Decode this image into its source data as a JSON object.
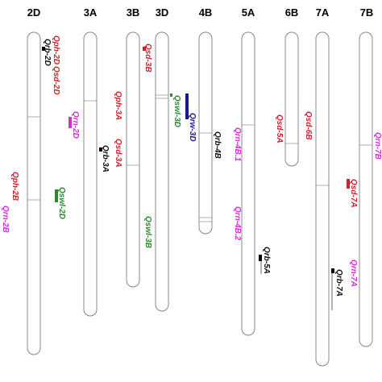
{
  "chromosomes": [
    {
      "label": "2D"
    },
    {
      "label": "3A"
    },
    {
      "label": "3B"
    },
    {
      "label": "3D"
    },
    {
      "label": "4B"
    },
    {
      "label": "5A"
    },
    {
      "label": "6B"
    },
    {
      "label": "7A"
    },
    {
      "label": "7B"
    }
  ],
  "qtls": [
    {
      "label": "Qrb-2D"
    },
    {
      "label": "Qph-2D"
    },
    {
      "label": "Qsd-2D"
    },
    {
      "label": "Qrn-2D"
    },
    {
      "label": "Qswl-2D"
    },
    {
      "label": "Qph-2B"
    },
    {
      "label": "Qrn-2B"
    },
    {
      "label": "Qph-3A"
    },
    {
      "label": "Qrb-3A"
    },
    {
      "label": "Qsd-3A"
    },
    {
      "label": "Qsd-3B"
    },
    {
      "label": "Qswl-3B"
    },
    {
      "label": "Qswl-3D"
    },
    {
      "label": "Qrw-3D"
    },
    {
      "label": "Qrb-4B"
    },
    {
      "label": "Qrn-4B.1"
    },
    {
      "label": "Qrn-4B.2"
    },
    {
      "label": "Qrb-5A"
    },
    {
      "label": "Qsd-5A"
    },
    {
      "label": "Qsd-6B"
    },
    {
      "label": "Qsd-7A"
    },
    {
      "label": "Qrn-7A"
    },
    {
      "label": "Qrb-7A"
    },
    {
      "label": "Qrn-7B"
    }
  ]
}
